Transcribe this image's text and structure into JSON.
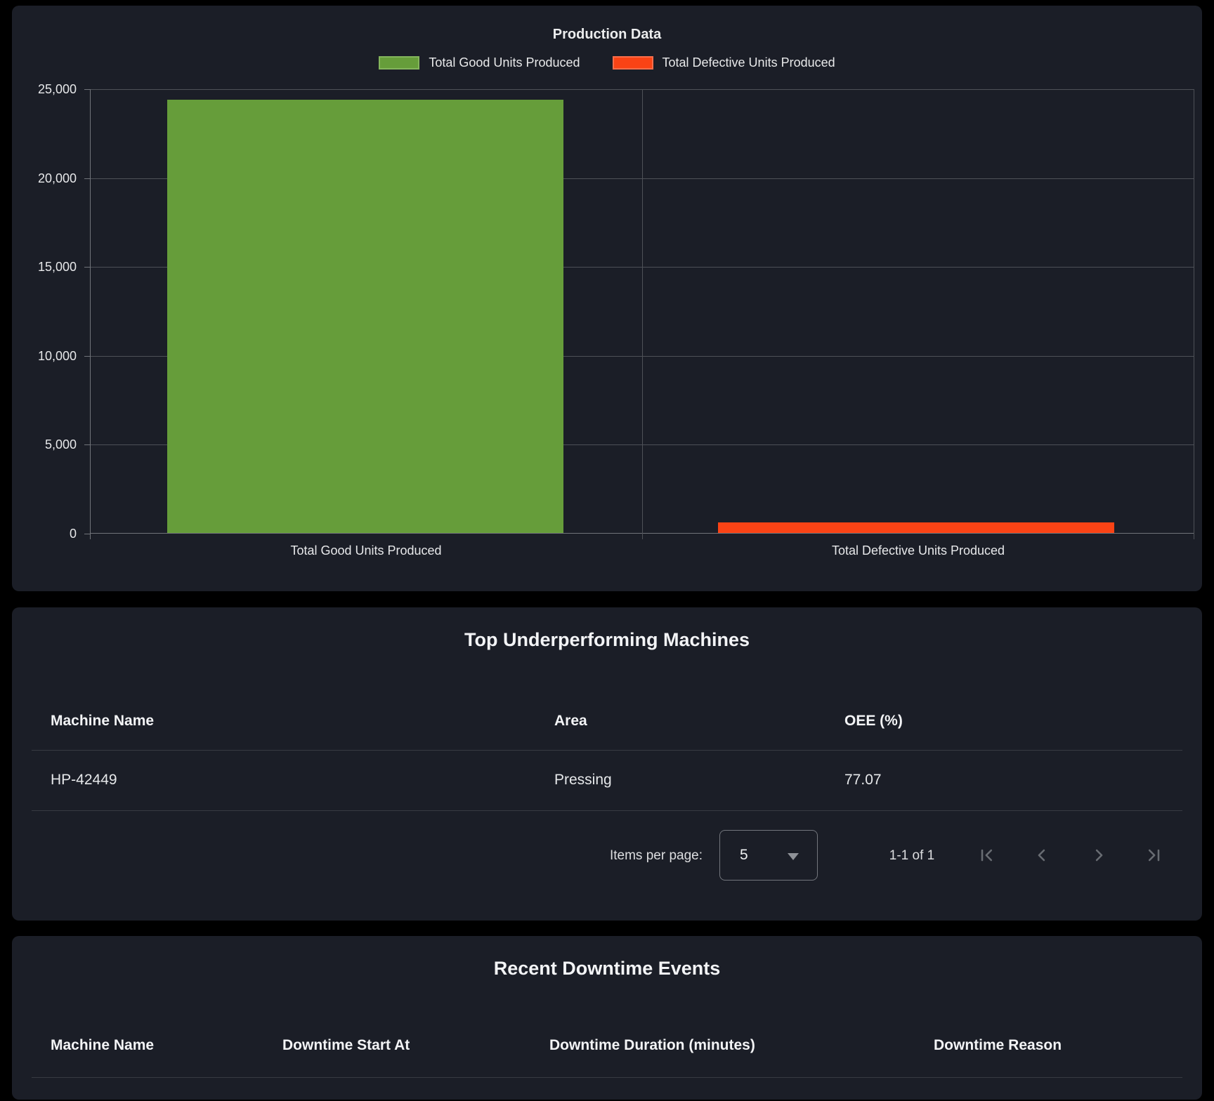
{
  "chart_data": {
    "type": "bar",
    "title": "Production Data",
    "categories": [
      "Total Good Units Produced",
      "Total Defective Units Produced"
    ],
    "values": [
      24370,
      590
    ],
    "bar_colors": [
      "#669d3a",
      "#fa4315"
    ],
    "bar_border_colors": [
      "#84b55c",
      "#fc6e4b"
    ],
    "legend_labels": [
      "Total Good Units Produced",
      "Total Defective Units Produced"
    ],
    "legend_position": "top",
    "xlabel": "",
    "ylabel": "",
    "ylim": [
      0,
      25000
    ],
    "ytick_step": 5000,
    "ytick_labels": [
      "25,000",
      "20,000",
      "15,000",
      "10,000",
      "5,000",
      "0"
    ],
    "grid": true
  },
  "machines": {
    "title": "Top Underperforming Machines",
    "columns": [
      "Machine Name",
      "Area",
      "OEE (%)"
    ],
    "rows": [
      {
        "machine_name": "HP-42449",
        "area": "Pressing",
        "oee": "77.07"
      }
    ],
    "paginator": {
      "items_per_page_label": "Items per page:",
      "page_size": "5",
      "range_label": "1-1 of 1"
    }
  },
  "downtime": {
    "title": "Recent Downtime Events",
    "columns": [
      "Machine Name",
      "Downtime Start At",
      "Downtime Duration (minutes)",
      "Downtime Reason"
    ],
    "rows": []
  }
}
